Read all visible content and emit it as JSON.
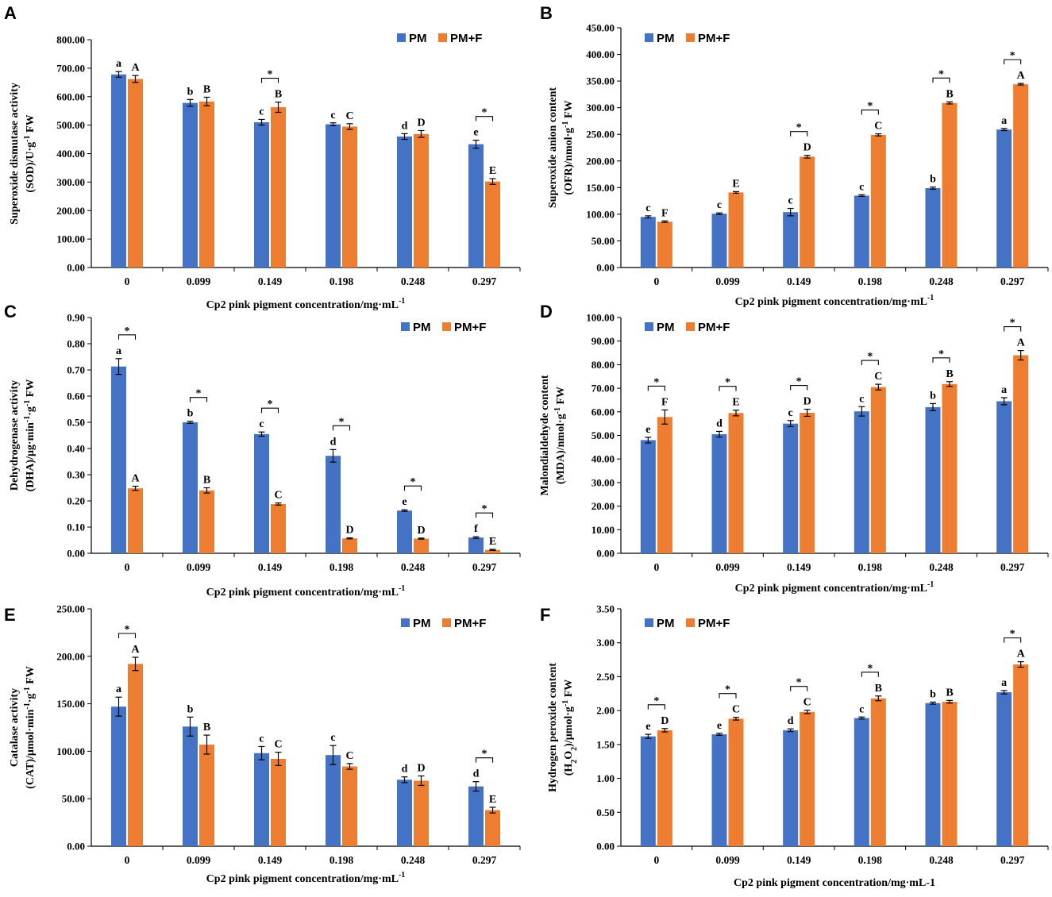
{
  "colors": {
    "pm": "#4472C4",
    "pmf": "#ED7D31",
    "axis": "#000000",
    "text": "#000000"
  },
  "legend": {
    "pm": "PM",
    "pmf": "PM+F"
  },
  "chart_data": [
    {
      "panel": "A",
      "type": "bar",
      "ylabel": [
        "Superoxide dismutase activity",
        "(SOD)/U·g",
        "-1",
        " FW"
      ],
      "xlabel": "Cp2 pink pigment concentration/mg·mL",
      "xlabel_sup": "-1",
      "categories": [
        "0",
        "0.099",
        "0.149",
        "0.198",
        "0.248",
        "0.297"
      ],
      "ylim": [
        0,
        800
      ],
      "yticks": [
        0,
        100,
        200,
        300,
        400,
        500,
        600,
        700,
        800
      ],
      "ytick_labels": [
        "0.00",
        "100.00",
        "200.00",
        "300.00",
        "400.00",
        "500.00",
        "600.00",
        "700.00",
        "800.00"
      ],
      "series": [
        {
          "name": "PM",
          "values": [
            678,
            578,
            510,
            503,
            460,
            433
          ],
          "errors": [
            10,
            12,
            10,
            5,
            10,
            14
          ],
          "sig": [
            "a",
            "b",
            "c",
            "c",
            "d",
            "e"
          ]
        },
        {
          "name": "PM+F",
          "values": [
            662,
            583,
            563,
            495,
            469,
            302
          ],
          "errors": [
            12,
            15,
            18,
            10,
            12,
            10
          ],
          "sig": [
            "A",
            "B",
            "B",
            "C",
            "D",
            "E"
          ]
        }
      ],
      "stars": [
        false,
        false,
        true,
        false,
        false,
        true
      ]
    },
    {
      "panel": "B",
      "type": "bar",
      "ylabel": [
        "Superoxide anion content",
        "(OFR)/nmol·g",
        "-1",
        " FW"
      ],
      "xlabel": "Cp2 pink pigment concentration/mg·mL",
      "xlabel_sup": "-1",
      "categories": [
        "0",
        "0.099",
        "0.149",
        "0.198",
        "0.248",
        "0.297"
      ],
      "ylim": [
        0,
        450
      ],
      "yticks": [
        0,
        50,
        100,
        150,
        200,
        250,
        300,
        350,
        400,
        450
      ],
      "ytick_labels": [
        "0.00",
        "50.00",
        "100.00",
        "150.00",
        "200.00",
        "250.00",
        "300.00",
        "350.00",
        "400.00",
        "450.00"
      ],
      "series": [
        {
          "name": "PM",
          "values": [
            95,
            101,
            104,
            135,
            149,
            259
          ],
          "errors": [
            2,
            1.5,
            7,
            1.5,
            2,
            2
          ],
          "sig": [
            "c",
            "c",
            "c",
            "c",
            "b",
            "a"
          ]
        },
        {
          "name": "PM+F",
          "values": [
            86,
            141,
            208,
            249,
            309,
            344
          ],
          "errors": [
            1.5,
            1.5,
            2.5,
            2,
            2,
            1.5
          ],
          "sig": [
            "F",
            "E",
            "D",
            "C",
            "B",
            "A"
          ]
        }
      ],
      "stars": [
        false,
        false,
        true,
        true,
        true,
        true
      ]
    },
    {
      "panel": "C",
      "type": "bar",
      "ylabel": [
        "Dehydrogenase activity",
        "(DHA)/μg·min",
        "-1",
        "·g",
        "-1",
        " FW"
      ],
      "xlabel": "Cp2 pink pigment concentration/mg·mL",
      "xlabel_sup": "-1",
      "categories": [
        "0",
        "0.099",
        "0.149",
        "0.198",
        "0.248",
        "0.297"
      ],
      "ylim": [
        0,
        0.9
      ],
      "yticks": [
        0,
        0.1,
        0.2,
        0.3,
        0.4,
        0.5,
        0.6,
        0.7,
        0.8,
        0.9
      ],
      "ytick_labels": [
        "0.00",
        "0.10",
        "0.20",
        "0.30",
        "0.40",
        "0.50",
        "0.60",
        "0.70",
        "0.80",
        "0.90"
      ],
      "series": [
        {
          "name": "PM",
          "values": [
            0.713,
            0.5,
            0.455,
            0.372,
            0.163,
            0.06
          ],
          "errors": [
            0.03,
            0.004,
            0.008,
            0.024,
            0.003,
            0.003
          ],
          "sig": [
            "a",
            "b",
            "c",
            "d",
            "e",
            "f"
          ]
        },
        {
          "name": "PM+F",
          "values": [
            0.248,
            0.24,
            0.188,
            0.057,
            0.056,
            0.013
          ],
          "errors": [
            0.008,
            0.01,
            0.004,
            0.002,
            0.002,
            0.002
          ],
          "sig": [
            "A",
            "B",
            "C",
            "D",
            "D",
            "E"
          ]
        }
      ],
      "stars": [
        true,
        true,
        true,
        true,
        true,
        true
      ]
    },
    {
      "panel": "D",
      "type": "bar",
      "ylabel": [
        "Malondialdehyde content",
        "(MDA)/nmol·g",
        "-1",
        " FW"
      ],
      "xlabel": "Cp2 pink pigment concentration/mg·mL",
      "xlabel_sup": "-1",
      "categories": [
        "0",
        "0.099",
        "0.149",
        "0.198",
        "0.248",
        "0.297"
      ],
      "ylim": [
        0,
        100
      ],
      "yticks": [
        0,
        10,
        20,
        30,
        40,
        50,
        60,
        70,
        80,
        90,
        100
      ],
      "ytick_labels": [
        "0.00",
        "10.00",
        "20.00",
        "30.00",
        "40.00",
        "50.00",
        "60.00",
        "70.00",
        "80.00",
        "90.00",
        "100.00"
      ],
      "series": [
        {
          "name": "PM",
          "values": [
            48,
            50.5,
            55,
            60.2,
            62,
            64.5
          ],
          "errors": [
            1.2,
            1.2,
            1.3,
            2,
            1.5,
            1.5
          ],
          "sig": [
            "e",
            "d",
            "c",
            "c",
            "b",
            "a"
          ]
        },
        {
          "name": "PM+F",
          "values": [
            57.8,
            59.5,
            59.6,
            70.5,
            71.8,
            84
          ],
          "errors": [
            3,
            1.2,
            1.5,
            1.2,
            1,
            2
          ],
          "sig": [
            "F",
            "E",
            "D",
            "C",
            "B",
            "A"
          ]
        }
      ],
      "stars": [
        true,
        true,
        true,
        true,
        true,
        true
      ]
    },
    {
      "panel": "E",
      "type": "bar",
      "ylabel": [
        "Catalase activity",
        "(CAT)/μmol·min",
        "-1",
        "·g",
        "-1",
        " FW"
      ],
      "xlabel": "Cp2 pink pigment concentration/mg·mL",
      "xlabel_sup": "-1",
      "categories": [
        "0",
        "0.099",
        "0.149",
        "0.198",
        "0.248",
        "0.297"
      ],
      "ylim": [
        0,
        250
      ],
      "yticks": [
        0,
        50,
        100,
        150,
        200,
        250
      ],
      "ytick_labels": [
        "0.00",
        "50.00",
        "100.00",
        "150.00",
        "200.00",
        "250.00"
      ],
      "series": [
        {
          "name": "PM",
          "values": [
            147,
            126,
            98,
            96,
            70,
            63
          ],
          "errors": [
            10,
            10,
            7,
            10,
            3,
            5
          ],
          "sig": [
            "a",
            "b",
            "c",
            "c",
            "d",
            "d"
          ]
        },
        {
          "name": "PM+F",
          "values": [
            192,
            107,
            92,
            84,
            69,
            38
          ],
          "errors": [
            7,
            10,
            7,
            3,
            5,
            3
          ],
          "sig": [
            "A",
            "B",
            "C",
            "C",
            "D",
            "E"
          ]
        }
      ],
      "stars": [
        true,
        false,
        false,
        false,
        false,
        true
      ]
    },
    {
      "panel": "F",
      "type": "bar",
      "ylabel": [
        "Hydrogen peroxide content",
        "(H",
        "2",
        "O",
        "2",
        ")/μmol·g",
        "-1",
        " FW"
      ],
      "xlabel": "Cp2 pink pigment concentration/mg·mL-1",
      "xlabel_sup": "",
      "categories": [
        "0",
        "0.099",
        "0.149",
        "0.198",
        "0.248",
        "0.297"
      ],
      "ylim": [
        0,
        3.5
      ],
      "yticks": [
        0,
        0.5,
        1,
        1.5,
        2,
        2.5,
        3,
        3.5
      ],
      "ytick_labels": [
        "0.00",
        "0.50",
        "1.00",
        "1.50",
        "2.00",
        "2.50",
        "3.00",
        "3.50"
      ],
      "series": [
        {
          "name": "PM",
          "values": [
            1.62,
            1.65,
            1.71,
            1.89,
            2.11,
            2.27
          ],
          "errors": [
            0.03,
            0.015,
            0.02,
            0.015,
            0.015,
            0.025
          ],
          "sig": [
            "e",
            "e",
            "d",
            "c",
            "b",
            "a"
          ]
        },
        {
          "name": "PM+F",
          "values": [
            1.71,
            1.88,
            1.98,
            2.18,
            2.13,
            2.68
          ],
          "errors": [
            0.025,
            0.02,
            0.025,
            0.035,
            0.02,
            0.04
          ],
          "sig": [
            "D",
            "C",
            "C",
            "B",
            "B",
            "A"
          ]
        }
      ],
      "stars": [
        true,
        true,
        true,
        true,
        false,
        true
      ]
    }
  ]
}
